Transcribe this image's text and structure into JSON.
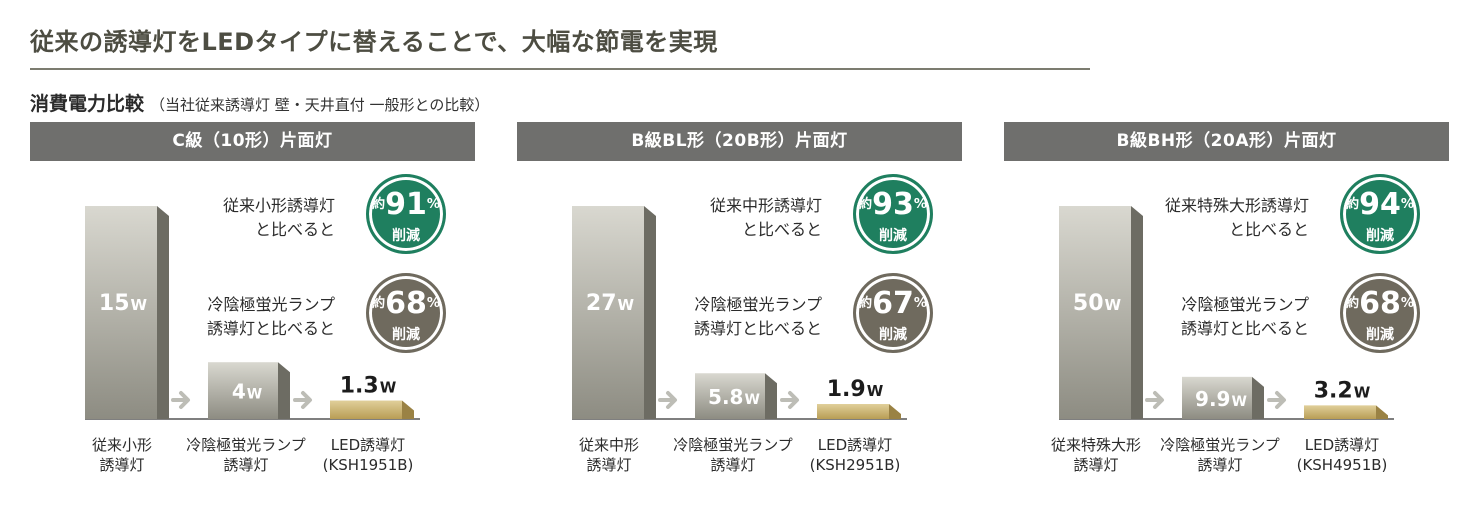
{
  "headline": "従来の誘導灯をLEDタイプに替えることで、大幅な節電を実現",
  "subhead": {
    "main": "消費電力比較",
    "note": "（当社従来誘導灯 壁・天井直付 一般形との比較）"
  },
  "colors": {
    "header_bg": "#6f6f6d",
    "green_badge": "#1f7f5f",
    "brown_badge": "#6f6a5e",
    "arrow": "#bdbdb6"
  },
  "chart_data": [
    {
      "type": "bar",
      "title": "C級（10形）片面灯",
      "categories": [
        "従来小形 誘導灯",
        "冷陰極蛍光ランプ 誘導灯",
        "LED誘導灯 (KSH1951B)"
      ],
      "values": [
        15,
        4,
        1.3
      ],
      "value_labels": [
        {
          "num": "15",
          "unit": "W"
        },
        {
          "num": "4",
          "unit": "W"
        },
        {
          "num": "1.3",
          "unit": "W"
        }
      ],
      "cat_labels": [
        [
          "従来小形",
          "誘導灯"
        ],
        [
          "冷陰極蛍光ランプ",
          "誘導灯"
        ],
        [
          "LED誘導灯",
          "(KSH1951B)"
        ]
      ],
      "comparisons": [
        {
          "lines": [
            "従来小形誘導灯",
            "と比べると"
          ],
          "approx": "約",
          "percent": "91",
          "pct": "%",
          "label": "削減",
          "color": "green"
        },
        {
          "lines": [
            "冷陰極蛍光ランプ",
            "誘導灯と比べると"
          ],
          "approx": "約",
          "percent": "68",
          "pct": "%",
          "label": "削減",
          "color": "brown"
        }
      ]
    },
    {
      "type": "bar",
      "title": "B級BL形（20B形）片面灯",
      "categories": [
        "従来中形 誘導灯",
        "冷陰極蛍光ランプ 誘導灯",
        "LED誘導灯 (KSH2951B)"
      ],
      "values": [
        27,
        5.8,
        1.9
      ],
      "value_labels": [
        {
          "num": "27",
          "unit": "W"
        },
        {
          "num": "5.8",
          "unit": "W"
        },
        {
          "num": "1.9",
          "unit": "W"
        }
      ],
      "cat_labels": [
        [
          "従来中形",
          "誘導灯"
        ],
        [
          "冷陰極蛍光ランプ",
          "誘導灯"
        ],
        [
          "LED誘導灯",
          "(KSH2951B)"
        ]
      ],
      "comparisons": [
        {
          "lines": [
            "従来中形誘導灯",
            "と比べると"
          ],
          "approx": "約",
          "percent": "93",
          "pct": "%",
          "label": "削減",
          "color": "green"
        },
        {
          "lines": [
            "冷陰極蛍光ランプ",
            "誘導灯と比べると"
          ],
          "approx": "約",
          "percent": "67",
          "pct": "%",
          "label": "削減",
          "color": "brown"
        }
      ]
    },
    {
      "type": "bar",
      "title": "B級BH形（20A形）片面灯",
      "categories": [
        "従来特殊大形 誘導灯",
        "冷陰極蛍光ランプ 誘導灯",
        "LED誘導灯 (KSH4951B)"
      ],
      "values": [
        50,
        9.9,
        3.2
      ],
      "value_labels": [
        {
          "num": "50",
          "unit": "W"
        },
        {
          "num": "9.9",
          "unit": "W"
        },
        {
          "num": "3.2",
          "unit": "W"
        }
      ],
      "cat_labels": [
        [
          "従来特殊大形",
          "誘導灯"
        ],
        [
          "冷陰極蛍光ランプ",
          "誘導灯"
        ],
        [
          "LED誘導灯",
          "(KSH4951B)"
        ]
      ],
      "comparisons": [
        {
          "lines": [
            "従来特殊大形誘導灯",
            "と比べると"
          ],
          "approx": "約",
          "percent": "94",
          "pct": "%",
          "label": "削減",
          "color": "green"
        },
        {
          "lines": [
            "冷陰極蛍光ランプ",
            "誘導灯と比べると"
          ],
          "approx": "約",
          "percent": "68",
          "pct": "%",
          "label": "削減",
          "color": "brown"
        }
      ]
    }
  ]
}
